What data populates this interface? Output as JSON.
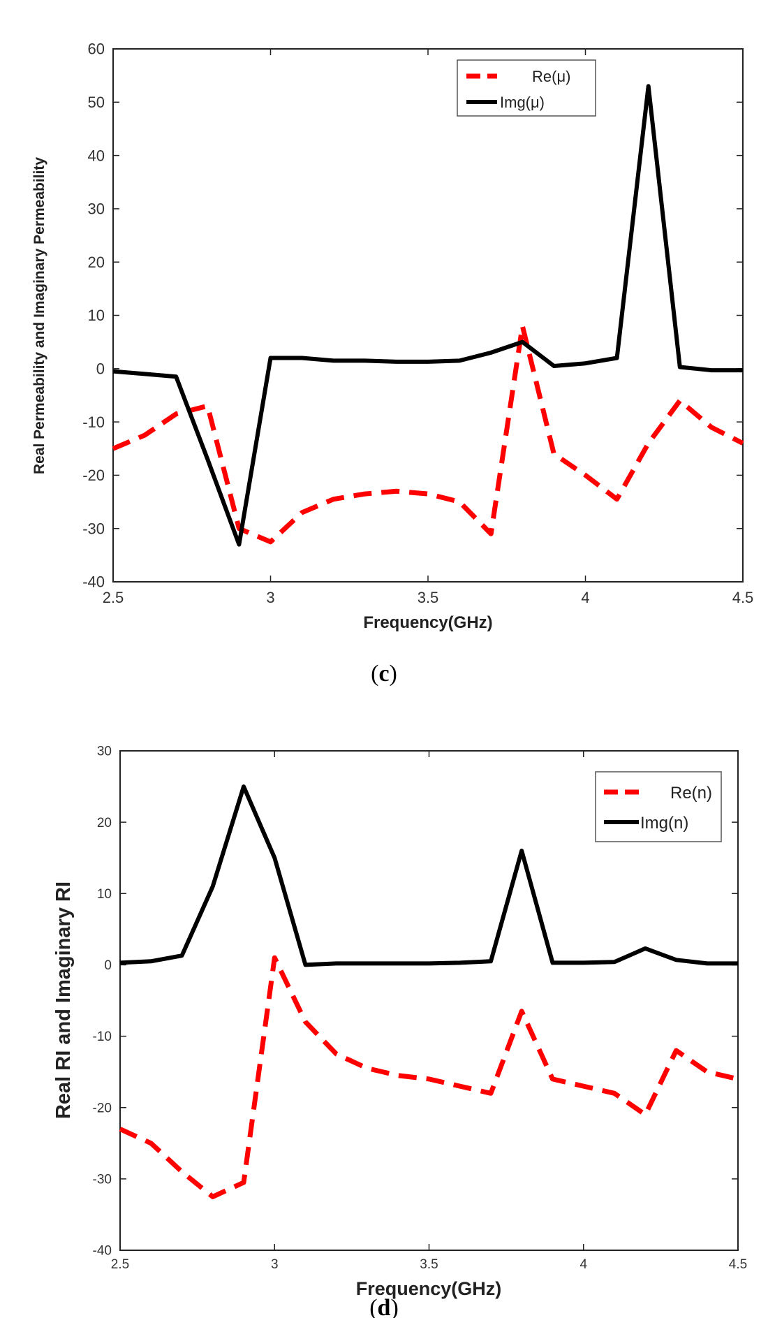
{
  "chart_data": [
    {
      "type": "line",
      "panel_label": "c",
      "title": "",
      "xlabel": "Frequency(GHz)",
      "ylabel": "Real Permeability and Imaginary Permeability",
      "xlim": [
        2.5,
        4.5
      ],
      "ylim": [
        -40,
        60
      ],
      "xticks": [
        2.5,
        3,
        3.5,
        4,
        4.5
      ],
      "yticks": [
        -40,
        -30,
        -20,
        -10,
        0,
        10,
        20,
        30,
        40,
        50,
        60
      ],
      "xtick_labels": [
        "2.5",
        "3",
        "3.5",
        "4",
        "4.5"
      ],
      "ytick_labels": [
        "-40",
        "-30",
        "-20",
        "-10",
        "0",
        "10",
        "20",
        "30",
        "40",
        "50",
        "60"
      ],
      "grid": false,
      "legend": "top-right",
      "x": [
        2.5,
        2.6,
        2.7,
        2.8,
        2.9,
        3.0,
        3.1,
        3.2,
        3.3,
        3.4,
        3.5,
        3.6,
        3.7,
        3.8,
        3.9,
        4.0,
        4.1,
        4.2,
        4.3,
        4.4,
        4.5
      ],
      "series": [
        {
          "name": "Re(μ)",
          "color": "#ff0000",
          "style": "dashed",
          "values": [
            -15,
            -12.5,
            -8.5,
            -7,
            -30,
            -32.5,
            -27,
            -24.5,
            -23.5,
            -23,
            -23.5,
            -25,
            -31,
            8,
            -16,
            -20,
            -24.5,
            -14,
            -6,
            -11,
            -14
          ]
        },
        {
          "name": "Img(μ)",
          "color": "#000000",
          "style": "solid",
          "values": [
            -0.5,
            -1,
            -1.5,
            -17,
            -33,
            2,
            2,
            1.5,
            1.5,
            1.3,
            1.3,
            1.5,
            3,
            5,
            0.5,
            1,
            2,
            53,
            0.3,
            -0.3,
            -0.3
          ]
        }
      ]
    },
    {
      "type": "line",
      "panel_label": "d",
      "title": "",
      "xlabel": "Frequency(GHz)",
      "ylabel": "Real RI and Imaginary RI",
      "xlim": [
        2.5,
        4.5
      ],
      "ylim": [
        -40,
        30
      ],
      "xticks": [
        2.5,
        3,
        3.5,
        4,
        4.5
      ],
      "yticks": [
        -40,
        -30,
        -20,
        -10,
        0,
        10,
        20,
        30
      ],
      "xtick_labels": [
        "2.5",
        "3",
        "3.5",
        "4",
        "4.5"
      ],
      "ytick_labels": [
        "-40",
        "-30",
        "-20",
        "-10",
        "0",
        "10",
        "20",
        "30"
      ],
      "grid": false,
      "legend": "top-right",
      "x": [
        2.5,
        2.6,
        2.7,
        2.8,
        2.9,
        3.0,
        3.1,
        3.2,
        3.3,
        3.4,
        3.5,
        3.6,
        3.7,
        3.8,
        3.9,
        4.0,
        4.1,
        4.2,
        4.3,
        4.4,
        4.5
      ],
      "series": [
        {
          "name": "Re(n)",
          "color": "#ff0000",
          "style": "dashed",
          "values": [
            -23,
            -25,
            -29,
            -32.5,
            -30.5,
            1,
            -8,
            -12.5,
            -14.5,
            -15.5,
            -16,
            -17,
            -18,
            -6.5,
            -16,
            -17,
            -18,
            -21,
            -12,
            -15,
            -16
          ]
        },
        {
          "name": "Img(n)",
          "color": "#000000",
          "style": "solid",
          "values": [
            0.3,
            0.5,
            1.3,
            11,
            25,
            15,
            0,
            0.2,
            0.2,
            0.2,
            0.2,
            0.3,
            0.5,
            16,
            0.3,
            0.3,
            0.4,
            2.3,
            0.7,
            0.2,
            0.2
          ]
        }
      ]
    }
  ]
}
